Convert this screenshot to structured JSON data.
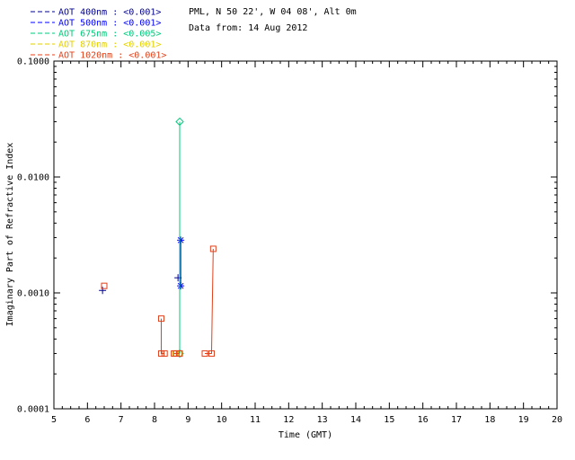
{
  "header": {
    "line1": "PML, N 50 22', W 04 08', Alt 0m",
    "line2": "Data from: 14 Aug 2012"
  },
  "chart_data": {
    "type": "line",
    "title": "",
    "xlabel": "Time (GMT)",
    "ylabel": "Imaginary Part of Refractive Index",
    "xlim": [
      5,
      20
    ],
    "ylim": [
      0.0001,
      0.1
    ],
    "y_scale": "log",
    "grid": false,
    "legend_position": "top-left",
    "x_ticks": [
      5,
      6,
      7,
      8,
      9,
      10,
      11,
      12,
      13,
      14,
      15,
      16,
      17,
      18,
      19,
      20
    ],
    "y_ticks": [
      {
        "v": 0.1,
        "label": "0.1000"
      },
      {
        "v": 0.01,
        "label": "0.0100"
      },
      {
        "v": 0.001,
        "label": "0.0010"
      },
      {
        "v": 0.0001,
        "label": "0.0001"
      }
    ],
    "series": [
      {
        "id": "aot-400nm",
        "legend_label": "AOT  400nm : <0.001>",
        "color": "#00008c",
        "marker": "plus",
        "segments": [
          [
            [
              6.45,
              0.00105
            ]
          ],
          [
            [
              8.7,
              0.00135
            ]
          ]
        ]
      },
      {
        "id": "aot-500nm",
        "legend_label": "AOT  500nm : <0.001>",
        "color": "#0000ff",
        "marker": "asterisk",
        "segments": [
          [
            [
              8.78,
              0.00115
            ],
            [
              8.78,
              0.00285
            ]
          ]
        ]
      },
      {
        "id": "aot-675nm",
        "legend_label": "AOT  675nm : <0.005>",
        "color": "#00c878",
        "marker": "diamond",
        "segments": [
          [
            [
              8.75,
              0.0003
            ],
            [
              8.75,
              0.03
            ]
          ]
        ]
      },
      {
        "id": "aot-870nm",
        "legend_label": "AOT  870nm : <0.001>",
        "color": "#e3cf00",
        "marker": "square",
        "segments": [
          [
            [
              8.62,
              0.0003
            ]
          ],
          [
            [
              8.72,
              0.0003
            ]
          ]
        ]
      },
      {
        "id": "aot-1020nm",
        "legend_label": "AOT 1020nm : <0.001>",
        "color": "#e0401a",
        "marker": "square",
        "segments": [
          [
            [
              6.5,
              0.00115
            ]
          ],
          [
            [
              8.2,
              0.0006
            ],
            [
              8.2,
              0.0003
            ],
            [
              8.3,
              0.0003
            ]
          ],
          [
            [
              8.58,
              0.0003
            ],
            [
              8.65,
              0.0003
            ],
            [
              8.75,
              0.0003
            ]
          ],
          [
            [
              9.5,
              0.0003
            ],
            [
              9.7,
              0.0003
            ],
            [
              9.75,
              0.0024
            ]
          ]
        ]
      }
    ]
  }
}
